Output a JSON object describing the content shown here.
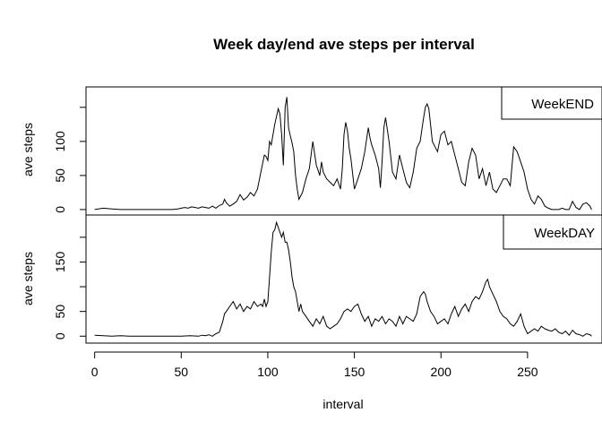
{
  "chart_data": {
    "type": "line",
    "title": "Week day/end ave steps per interval",
    "xlabel": "interval",
    "xlim": [
      -5,
      293
    ],
    "x_ticks": [
      0,
      50,
      100,
      150,
      200,
      250
    ],
    "grid": false,
    "panels": [
      {
        "name": "WeekEND",
        "legend": "top-right",
        "ylabel": "ave steps",
        "ylim": [
          -8,
          180
        ],
        "y_ticks": [
          0,
          50,
          100,
          150
        ],
        "y_tick_labels": [
          "0",
          "50",
          "100",
          ""
        ],
        "series": [
          {
            "name": "WeekEND",
            "x": [
              0,
              5,
              10,
              15,
              20,
              25,
              30,
              35,
              40,
              45,
              48,
              50,
              52,
              54,
              56,
              58,
              60,
              62,
              64,
              66,
              68,
              70,
              72,
              74,
              75,
              76,
              78,
              80,
              82,
              84,
              86,
              88,
              90,
              92,
              94,
              96,
              98,
              99,
              100,
              101,
              102,
              104,
              106,
              107,
              108,
              109,
              110,
              111,
              112,
              113,
              114,
              115,
              116,
              117,
              118,
              120,
              122,
              124,
              126,
              128,
              129,
              130,
              131,
              132,
              134,
              136,
              138,
              140,
              142,
              143,
              144,
              145,
              146,
              147,
              148,
              150,
              152,
              154,
              156,
              158,
              159,
              160,
              162,
              164,
              165,
              166,
              167,
              168,
              170,
              172,
              174,
              176,
              178,
              180,
              182,
              184,
              186,
              188,
              190,
              191,
              192,
              193,
              194,
              195,
              196,
              198,
              200,
              202,
              204,
              206,
              208,
              210,
              212,
              214,
              216,
              218,
              220,
              222,
              224,
              226,
              228,
              230,
              232,
              234,
              236,
              238,
              240,
              242,
              244,
              246,
              248,
              250,
              252,
              254,
              256,
              258,
              260,
              262,
              264,
              266,
              268,
              270,
              272,
              274,
              276,
              278,
              280,
              282,
              284,
              286,
              287
            ],
            "y": [
              0,
              2,
              1,
              0,
              0,
              0,
              0,
              0,
              0,
              0,
              1,
              2,
              3,
              2,
              4,
              3,
              2,
              4,
              3,
              2,
              5,
              2,
              6,
              8,
              15,
              10,
              5,
              8,
              12,
              22,
              14,
              18,
              25,
              20,
              30,
              55,
              80,
              78,
              72,
              100,
              95,
              125,
              148,
              140,
              110,
              65,
              150,
              165,
              120,
              108,
              98,
              85,
              50,
              30,
              15,
              25,
              45,
              60,
              100,
              65,
              58,
              50,
              70,
              55,
              45,
              40,
              35,
              45,
              30,
              60,
              110,
              128,
              115,
              90,
              75,
              30,
              45,
              60,
              85,
              120,
              105,
              95,
              80,
              60,
              32,
              70,
              120,
              135,
              100,
              55,
              45,
              80,
              60,
              40,
              32,
              55,
              90,
              100,
              135,
              150,
              155,
              148,
              125,
              100,
              95,
              85,
              110,
              115,
              95,
              100,
              80,
              60,
              40,
              35,
              70,
              90,
              80,
              45,
              60,
              35,
              55,
              30,
              25,
              35,
              45,
              45,
              35,
              92,
              85,
              70,
              55,
              30,
              15,
              8,
              20,
              15,
              5,
              2,
              0,
              0,
              0,
              2,
              0,
              0,
              12,
              3,
              0,
              8,
              10,
              5,
              0
            ]
          }
        ]
      },
      {
        "name": "WeekDAY",
        "legend": "top-right",
        "ylabel": "ave steps",
        "ylim": [
          -14,
          245
        ],
        "y_ticks": [
          0,
          50,
          100,
          150,
          200
        ],
        "y_tick_labels": [
          "0",
          "50",
          "",
          "150",
          ""
        ],
        "series": [
          {
            "name": "WeekDAY",
            "x": [
              0,
              5,
              10,
              15,
              20,
              25,
              30,
              35,
              40,
              45,
              50,
              55,
              60,
              62,
              64,
              66,
              68,
              70,
              72,
              74,
              75,
              76,
              78,
              80,
              82,
              84,
              86,
              88,
              90,
              92,
              94,
              96,
              97,
              98,
              99,
              100,
              101,
              102,
              103,
              104,
              105,
              106,
              107,
              108,
              109,
              110,
              111,
              112,
              113,
              114,
              115,
              116,
              117,
              118,
              119,
              120,
              122,
              124,
              126,
              128,
              130,
              132,
              134,
              136,
              138,
              140,
              142,
              144,
              146,
              148,
              150,
              152,
              154,
              156,
              158,
              160,
              162,
              164,
              166,
              168,
              170,
              172,
              174,
              176,
              178,
              180,
              182,
              184,
              186,
              188,
              190,
              191,
              192,
              194,
              196,
              198,
              200,
              202,
              204,
              206,
              208,
              210,
              212,
              214,
              216,
              218,
              220,
              222,
              224,
              226,
              227,
              228,
              230,
              232,
              234,
              236,
              238,
              240,
              242,
              244,
              246,
              248,
              250,
              252,
              254,
              256,
              258,
              260,
              262,
              264,
              266,
              268,
              270,
              272,
              274,
              276,
              278,
              280,
              282,
              284,
              286,
              287
            ],
            "y": [
              2,
              1,
              0,
              1,
              0,
              0,
              0,
              0,
              0,
              0,
              0,
              1,
              0,
              2,
              1,
              3,
              0,
              5,
              8,
              30,
              45,
              50,
              60,
              70,
              55,
              65,
              50,
              60,
              55,
              70,
              60,
              65,
              60,
              75,
              60,
              70,
              120,
              170,
              210,
              215,
              230,
              220,
              210,
              200,
              210,
              190,
              190,
              175,
              150,
              120,
              100,
              90,
              70,
              50,
              65,
              50,
              40,
              30,
              20,
              35,
              25,
              40,
              20,
              15,
              20,
              25,
              35,
              50,
              55,
              50,
              60,
              65,
              45,
              30,
              40,
              20,
              35,
              30,
              40,
              25,
              35,
              30,
              20,
              40,
              25,
              40,
              35,
              30,
              45,
              80,
              90,
              85,
              70,
              50,
              40,
              25,
              30,
              35,
              25,
              45,
              60,
              40,
              55,
              65,
              50,
              70,
              80,
              75,
              90,
              110,
              115,
              100,
              85,
              70,
              50,
              40,
              35,
              25,
              20,
              30,
              45,
              20,
              5,
              10,
              15,
              10,
              20,
              15,
              12,
              10,
              15,
              8,
              5,
              10,
              2,
              12,
              5,
              3,
              0,
              5,
              3,
              0
            ]
          }
        ]
      }
    ]
  }
}
